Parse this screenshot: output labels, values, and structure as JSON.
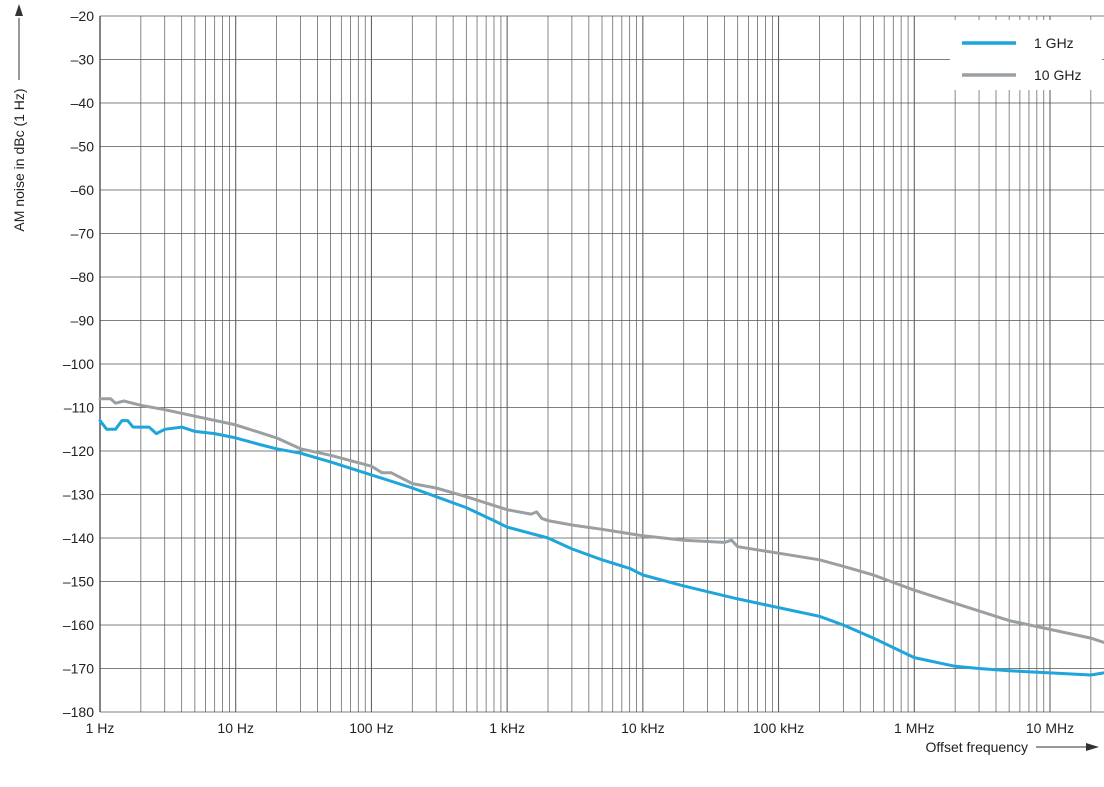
{
  "chart_data": {
    "type": "line",
    "title": "",
    "xlabel": "Offset frequency",
    "ylabel": "AM noise in dBc (1 Hz)",
    "x_scale": "log",
    "xlim": [
      1,
      25000000
    ],
    "ylim": [
      -180,
      -20
    ],
    "grid": true,
    "legend_position": "top-right",
    "x_ticks": [
      {
        "value": 1,
        "label": "1 Hz"
      },
      {
        "value": 10,
        "label": "10 Hz"
      },
      {
        "value": 100,
        "label": "100 Hz"
      },
      {
        "value": 1000,
        "label": "1 kHz"
      },
      {
        "value": 10000,
        "label": "10 kHz"
      },
      {
        "value": 100000,
        "label": "100 kHz"
      },
      {
        "value": 1000000,
        "label": "1 MHz"
      },
      {
        "value": 10000000,
        "label": "10 MHz"
      }
    ],
    "y_ticks": [
      {
        "value": -20,
        "label": "–20"
      },
      {
        "value": -30,
        "label": "–30"
      },
      {
        "value": -40,
        "label": "–40"
      },
      {
        "value": -50,
        "label": "–50"
      },
      {
        "value": -60,
        "label": "–60"
      },
      {
        "value": -70,
        "label": "–70"
      },
      {
        "value": -80,
        "label": "–80"
      },
      {
        "value": -90,
        "label": "–90"
      },
      {
        "value": -100,
        "label": "–100"
      },
      {
        "value": -110,
        "label": "–110"
      },
      {
        "value": -120,
        "label": "–120"
      },
      {
        "value": -130,
        "label": "–130"
      },
      {
        "value": -140,
        "label": "–140"
      },
      {
        "value": -150,
        "label": "–150"
      },
      {
        "value": -160,
        "label": "–160"
      },
      {
        "value": -170,
        "label": "–170"
      },
      {
        "value": -180,
        "label": "–180"
      }
    ],
    "series": [
      {
        "name": "1 GHz",
        "color": "#1ea5dc",
        "points": [
          [
            1,
            -113
          ],
          [
            1.12,
            -115
          ],
          [
            1.3,
            -115
          ],
          [
            1.45,
            -113
          ],
          [
            1.6,
            -113
          ],
          [
            1.75,
            -114.5
          ],
          [
            2,
            -114.5
          ],
          [
            2.3,
            -114.5
          ],
          [
            2.6,
            -116
          ],
          [
            3,
            -115
          ],
          [
            4,
            -114.5
          ],
          [
            5,
            -115.5
          ],
          [
            7,
            -116
          ],
          [
            10,
            -117
          ],
          [
            15,
            -118.5
          ],
          [
            20,
            -119.5
          ],
          [
            30,
            -120.5
          ],
          [
            50,
            -122.5
          ],
          [
            100,
            -125.5
          ],
          [
            200,
            -128.5
          ],
          [
            300,
            -130.5
          ],
          [
            500,
            -133
          ],
          [
            800,
            -136
          ],
          [
            1000,
            -137.5
          ],
          [
            2000,
            -140
          ],
          [
            3000,
            -142.5
          ],
          [
            5000,
            -145
          ],
          [
            8000,
            -147
          ],
          [
            10000,
            -148.5
          ],
          [
            20000,
            -151
          ],
          [
            50000,
            -154
          ],
          [
            100000,
            -156
          ],
          [
            200000,
            -158
          ],
          [
            300000,
            -160
          ],
          [
            500000,
            -163
          ],
          [
            1000000,
            -167.5
          ],
          [
            2000000,
            -169.5
          ],
          [
            3000000,
            -170
          ],
          [
            5000000,
            -170.5
          ],
          [
            10000000,
            -171
          ],
          [
            20000000,
            -171.5
          ],
          [
            25000000,
            -171
          ]
        ]
      },
      {
        "name": "10 GHz",
        "color": "#9a9fa3",
        "points": [
          [
            1,
            -108
          ],
          [
            1.2,
            -108
          ],
          [
            1.3,
            -109
          ],
          [
            1.5,
            -108.5
          ],
          [
            2,
            -109.5
          ],
          [
            3,
            -110.5
          ],
          [
            5,
            -112
          ],
          [
            10,
            -114
          ],
          [
            20,
            -117
          ],
          [
            30,
            -119.5
          ],
          [
            50,
            -121
          ],
          [
            100,
            -123.5
          ],
          [
            120,
            -125
          ],
          [
            140,
            -125
          ],
          [
            200,
            -127.5
          ],
          [
            300,
            -128.5
          ],
          [
            500,
            -130.5
          ],
          [
            1000,
            -133.5
          ],
          [
            1500,
            -134.5
          ],
          [
            1650,
            -134
          ],
          [
            1800,
            -135.5
          ],
          [
            2000,
            -136
          ],
          [
            3000,
            -137
          ],
          [
            5000,
            -138
          ],
          [
            10000,
            -139.5
          ],
          [
            20000,
            -140.5
          ],
          [
            40000,
            -141
          ],
          [
            45000,
            -140.5
          ],
          [
            50000,
            -142
          ],
          [
            100000,
            -143.5
          ],
          [
            200000,
            -145
          ],
          [
            300000,
            -146.5
          ],
          [
            500000,
            -148.5
          ],
          [
            1000000,
            -152
          ],
          [
            2000000,
            -155
          ],
          [
            5000000,
            -159
          ],
          [
            10000000,
            -161
          ],
          [
            20000000,
            -163
          ],
          [
            25000000,
            -164
          ]
        ]
      }
    ]
  }
}
